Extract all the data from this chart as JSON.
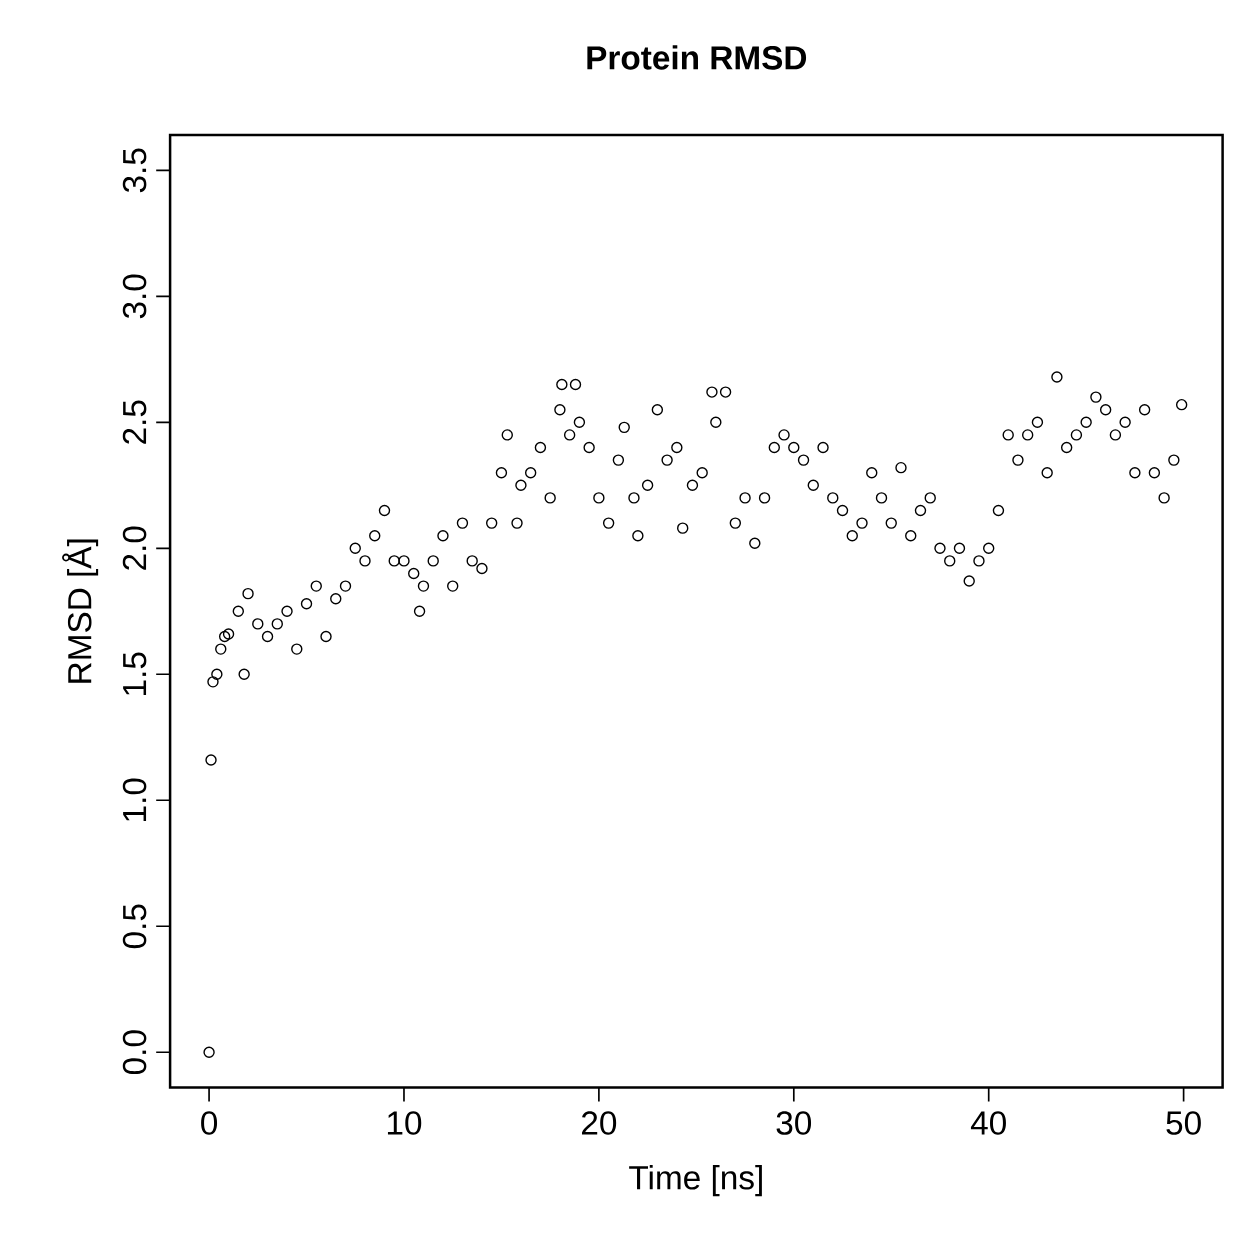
{
  "chart_data": {
    "type": "scatter",
    "title": "Protein RMSD",
    "xlabel": "Time [ns]",
    "ylabel": "RMSD [Å]",
    "color": "#000000",
    "marker": "circle",
    "grid": false,
    "xlim": [
      -2,
      52
    ],
    "ylim": [
      -0.14,
      3.64
    ],
    "xticks": [
      0,
      10,
      20,
      30,
      40,
      50
    ],
    "yticks": [
      {
        "value": 0,
        "label": "0.0"
      },
      {
        "value": 0.5,
        "label": "0.5"
      },
      {
        "value": 1,
        "label": "1.0"
      },
      {
        "value": 1.5,
        "label": "1.5"
      },
      {
        "value": 2,
        "label": "2.0"
      },
      {
        "value": 2.5,
        "label": "2.5"
      },
      {
        "value": 3,
        "label": "3.0"
      },
      {
        "value": 3.5,
        "label": "3.5"
      }
    ],
    "x": [
      0,
      0.1,
      0.2,
      0.4,
      0.6,
      0.8,
      1,
      1.5,
      1.8,
      2,
      2.5,
      3,
      3.5,
      4,
      4.5,
      5,
      5.5,
      6,
      6.5,
      7,
      7.5,
      8,
      8.5,
      9,
      9.5,
      10,
      10.5,
      10.8,
      11,
      11.5,
      12,
      12.5,
      13,
      13.5,
      14,
      14.5,
      15,
      15.3,
      15.8,
      16,
      16.5,
      17,
      17.5,
      18,
      18.1,
      18.5,
      18.8,
      19,
      19.5,
      20,
      20.5,
      21,
      21.3,
      21.8,
      22,
      22.5,
      23,
      23.5,
      24,
      24.3,
      24.8,
      25.3,
      25.8,
      26,
      26.5,
      27,
      27.5,
      28,
      28.5,
      29,
      29.5,
      30,
      30.5,
      31,
      31.5,
      32,
      32.5,
      33,
      33.5,
      34,
      34.5,
      35,
      35.5,
      36,
      36.5,
      37,
      37.5,
      38,
      38.5,
      39,
      39.5,
      40,
      40.5,
      41,
      41.5,
      42,
      42.5,
      43,
      43.5,
      44,
      44.5,
      45,
      45.5,
      46,
      46.5,
      47,
      47.5,
      48,
      48.5,
      49,
      49.5,
      49.9
    ],
    "values": [
      0,
      1.16,
      1.47,
      1.5,
      1.6,
      1.65,
      1.66,
      1.75,
      1.5,
      1.82,
      1.7,
      1.65,
      1.7,
      1.75,
      1.6,
      1.78,
      1.85,
      1.65,
      1.8,
      1.85,
      2.0,
      1.95,
      2.05,
      2.15,
      1.95,
      1.95,
      1.9,
      1.75,
      1.85,
      1.95,
      2.05,
      1.85,
      2.1,
      1.95,
      1.92,
      2.1,
      2.3,
      2.45,
      2.1,
      2.25,
      2.3,
      2.4,
      2.2,
      2.55,
      2.65,
      2.45,
      2.65,
      2.5,
      2.4,
      2.2,
      2.1,
      2.35,
      2.48,
      2.2,
      2.05,
      2.25,
      2.55,
      2.35,
      2.4,
      2.08,
      2.25,
      2.3,
      2.62,
      2.5,
      2.62,
      2.1,
      2.2,
      2.02,
      2.2,
      2.4,
      2.45,
      2.4,
      2.35,
      2.25,
      2.4,
      2.2,
      2.15,
      2.05,
      2.1,
      2.3,
      2.2,
      2.1,
      2.32,
      2.05,
      2.15,
      2.2,
      2.0,
      1.95,
      2.0,
      1.87,
      1.95,
      2.0,
      2.15,
      2.45,
      2.35,
      2.45,
      2.5,
      2.3,
      2.68,
      2.4,
      2.45,
      2.5,
      2.6,
      2.55,
      2.45,
      2.5,
      2.3,
      2.55,
      2.3,
      2.2,
      2.35,
      2.57
    ]
  }
}
